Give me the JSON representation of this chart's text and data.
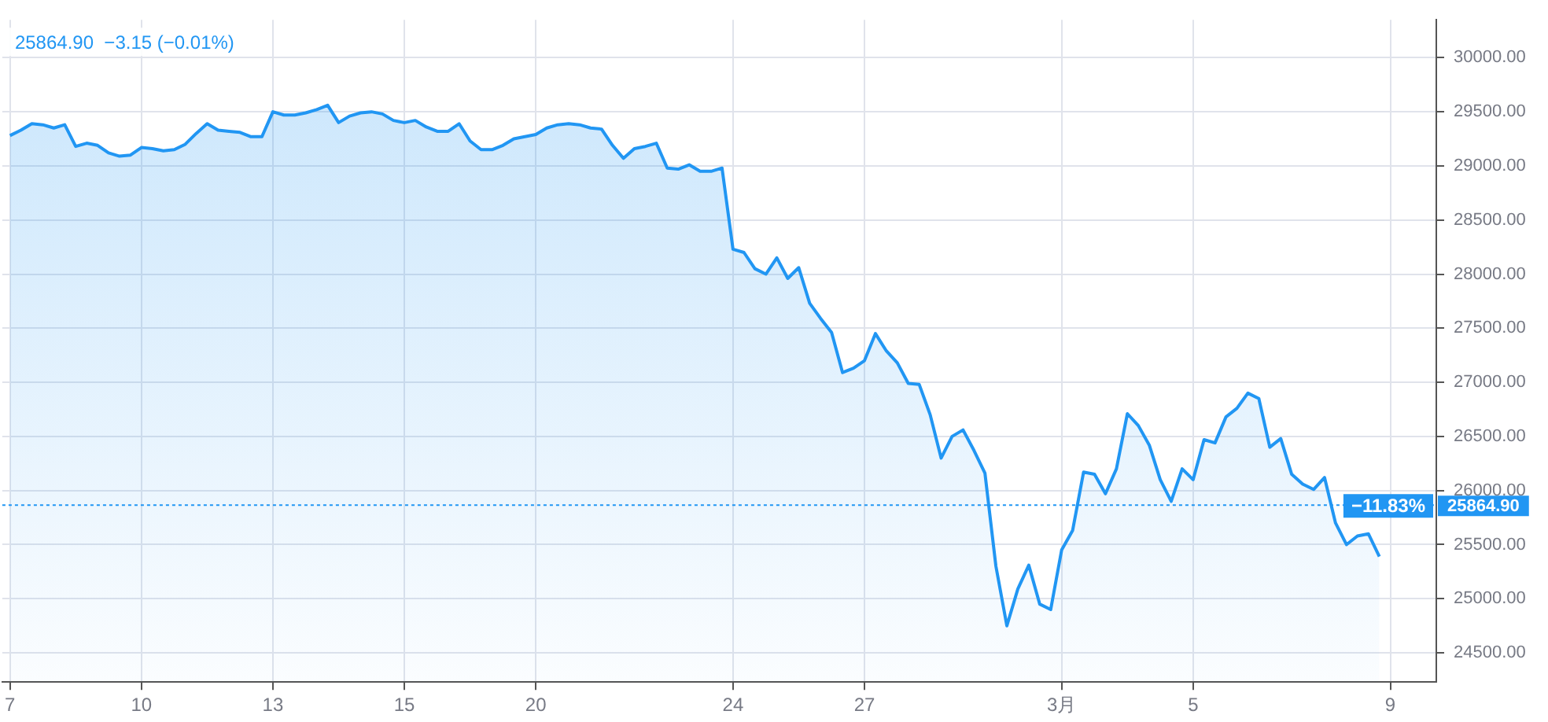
{
  "chart_data": {
    "type": "area",
    "title": "25864.90  −3.15 (−0.01%)",
    "categories": [
      "7",
      null,
      null,
      null,
      null,
      null,
      null,
      null,
      null,
      null,
      null,
      null,
      "10",
      null,
      null,
      null,
      null,
      null,
      null,
      null,
      null,
      null,
      null,
      null,
      "13",
      null,
      null,
      null,
      null,
      null,
      null,
      null,
      null,
      null,
      null,
      null,
      "15",
      null,
      null,
      null,
      null,
      null,
      null,
      null,
      null,
      null,
      null,
      null,
      "20",
      null,
      null,
      null,
      null,
      null,
      null,
      null,
      null,
      null,
      null,
      null,
      null,
      null,
      null,
      null,
      null,
      null,
      "24",
      null,
      null,
      null,
      null,
      null,
      null,
      null,
      null,
      null,
      null,
      null,
      "27",
      null,
      null,
      null,
      null,
      null,
      null,
      null,
      null,
      null,
      null,
      null,
      null,
      null,
      null,
      null,
      null,
      null,
      "3月",
      null,
      null,
      null,
      null,
      null,
      null,
      null,
      null,
      null,
      null,
      null,
      "5",
      null,
      null,
      null,
      null,
      null,
      null,
      null,
      null,
      null,
      null,
      null,
      null,
      null,
      null,
      null,
      null,
      null,
      "9"
    ],
    "series": [
      {
        "color": "#2196f3",
        "values": [
          29280,
          29330,
          29390,
          29380,
          29350,
          29380,
          29180,
          29210,
          29190,
          29120,
          29090,
          29100,
          29170,
          29160,
          29140,
          29150,
          29200,
          29300,
          29390,
          29330,
          29320,
          29310,
          29270,
          29270,
          29500,
          29470,
          29470,
          29490,
          29520,
          29560,
          29400,
          29460,
          29490,
          29500,
          29480,
          29420,
          29400,
          29420,
          29360,
          29320,
          29320,
          29390,
          29230,
          29150,
          29150,
          29190,
          29250,
          29270,
          29290,
          29350,
          29380,
          29390,
          29380,
          29350,
          29340,
          29190,
          29070,
          29160,
          29180,
          29210,
          28980,
          28970,
          29010,
          28950,
          28950,
          28980,
          28230,
          28200,
          28050,
          28000,
          28150,
          27960,
          28060,
          27730,
          27590,
          27460,
          27090,
          27130,
          27200,
          27450,
          27290,
          27180,
          26990,
          26980,
          26700,
          26300,
          26500,
          26560,
          26370,
          26160,
          25300,
          24750,
          25090,
          25310,
          24950,
          24900,
          25450,
          25630,
          26170,
          26150,
          25970,
          26200,
          26710,
          26600,
          26420,
          26100,
          25900,
          26200,
          26100,
          26470,
          26440,
          26680,
          26760,
          26900,
          26850,
          26400,
          26480,
          26150,
          26060,
          26010,
          26120,
          25700,
          25500,
          25580,
          25600,
          25390,
          null
        ]
      }
    ],
    "ylim": [
      24230,
      30350
    ],
    "yticks": [
      {
        "value": 24500,
        "label": "24500.00"
      },
      {
        "value": 25000,
        "label": "25000.00"
      },
      {
        "value": 25500,
        "label": "25500.00"
      },
      {
        "value": 26000,
        "label": "26000.00"
      },
      {
        "value": 26500,
        "label": "26500.00"
      },
      {
        "value": 27000,
        "label": "27000.00"
      },
      {
        "value": 27500,
        "label": "27500.00"
      },
      {
        "value": 28000,
        "label": "28000.00"
      },
      {
        "value": 28500,
        "label": "28500.00"
      },
      {
        "value": 29000,
        "label": "29000.00"
      },
      {
        "value": 29500,
        "label": "29500.00"
      },
      {
        "value": 30000,
        "label": "30000.00"
      }
    ],
    "ref_lines": [
      {
        "axis": "y",
        "value": 25864.9,
        "label": "−11.83%",
        "color": "#2196f3",
        "line_style": "dotted"
      }
    ],
    "annotations": [
      "25864.90"
    ],
    "grid": true,
    "legend": false,
    "marker": "none",
    "line_style": "solid"
  }
}
